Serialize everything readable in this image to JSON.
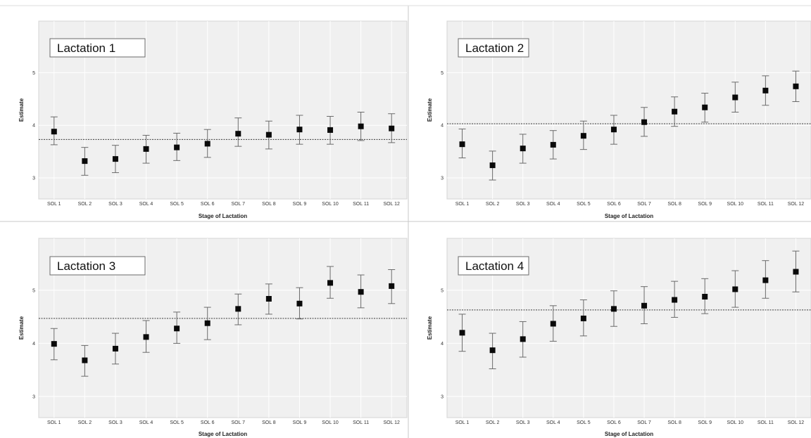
{
  "chart_data": [
    {
      "type": "scatter",
      "title": "Lactation 1",
      "xlabel": "Stage of Lactation",
      "ylabel": "Estimate",
      "categories": [
        "SOL 1",
        "SOL 2",
        "SOL 3",
        "SOL 4",
        "SOL 5",
        "SOL 6",
        "SOL 7",
        "SOL 8",
        "SOL 9",
        "SOL 10",
        "SOL 11",
        "SOL 12"
      ],
      "values": [
        3.88,
        3.32,
        3.36,
        3.55,
        3.58,
        3.65,
        3.84,
        3.82,
        3.92,
        3.91,
        3.98,
        3.94
      ],
      "lower": [
        3.63,
        3.05,
        3.1,
        3.28,
        3.33,
        3.39,
        3.6,
        3.55,
        3.64,
        3.64,
        3.71,
        3.67
      ],
      "upper": [
        4.16,
        3.58,
        3.62,
        3.81,
        3.85,
        3.92,
        4.14,
        4.08,
        4.19,
        4.17,
        4.25,
        4.22
      ],
      "reference_line": 3.73,
      "yticks": [
        3,
        4,
        5
      ],
      "ylim": [
        2.6,
        5.98
      ],
      "grid": true,
      "colors": {
        "marker": "#0a0a0a",
        "errorbar": "#6a6a6a",
        "panel_bg": "#f0f0f0"
      }
    },
    {
      "type": "scatter",
      "title": "Lactation 2",
      "xlabel": "Stage of Lactation",
      "ylabel": "Estimate",
      "categories": [
        "SOL 1",
        "SOL 2",
        "SOL 3",
        "SOL 4",
        "SOL 5",
        "SOL 6",
        "SOL 7",
        "SOL 8",
        "SOL 9",
        "SOL 10",
        "SOL 11",
        "SOL 12"
      ],
      "values": [
        3.64,
        3.24,
        3.56,
        3.63,
        3.8,
        3.92,
        4.06,
        4.26,
        4.34,
        4.53,
        4.66,
        4.74
      ],
      "lower": [
        3.38,
        2.96,
        3.28,
        3.36,
        3.54,
        3.64,
        3.79,
        3.98,
        4.06,
        4.25,
        4.38,
        4.45
      ],
      "upper": [
        3.93,
        3.51,
        3.83,
        3.9,
        4.08,
        4.19,
        4.34,
        4.54,
        4.61,
        4.82,
        4.94,
        5.03
      ],
      "reference_line": 4.03,
      "yticks": [
        3,
        4,
        5
      ],
      "ylim": [
        2.6,
        5.98
      ],
      "grid": true,
      "colors": {
        "marker": "#0a0a0a",
        "errorbar": "#6a6a6a",
        "panel_bg": "#f0f0f0"
      }
    },
    {
      "type": "scatter",
      "title": "Lactation 3",
      "xlabel": "Stage of Lactation",
      "ylabel": "Estimate",
      "categories": [
        "SOL 1",
        "SOL 2",
        "SOL 3",
        "SOL 4",
        "SOL 5",
        "SOL 6",
        "SOL 7",
        "SOL 8",
        "SOL 9",
        "SOL 10",
        "SOL 11",
        "SOL 12"
      ],
      "values": [
        3.99,
        3.68,
        3.9,
        4.12,
        4.28,
        4.38,
        4.65,
        4.84,
        4.75,
        5.14,
        4.97,
        5.08
      ],
      "lower": [
        3.69,
        3.38,
        3.61,
        3.83,
        4.0,
        4.07,
        4.35,
        4.55,
        4.46,
        4.85,
        4.67,
        4.75
      ],
      "upper": [
        4.28,
        3.96,
        4.19,
        4.43,
        4.59,
        4.68,
        4.93,
        5.12,
        5.05,
        5.45,
        5.29,
        5.39
      ],
      "reference_line": 4.47,
      "yticks": [
        3,
        4,
        5
      ],
      "ylim": [
        2.6,
        5.98
      ],
      "grid": true,
      "colors": {
        "marker": "#0a0a0a",
        "errorbar": "#6a6a6a",
        "panel_bg": "#f0f0f0"
      }
    },
    {
      "type": "scatter",
      "title": "Lactation 4",
      "xlabel": "Stage of Lactation",
      "ylabel": "Estimate",
      "categories": [
        "SOL 1",
        "SOL 2",
        "SOL 3",
        "SOL 4",
        "SOL 5",
        "SOL 6",
        "SOL 7",
        "SOL 8",
        "SOL 9",
        "SOL 10",
        "SOL 11",
        "SOL 12"
      ],
      "values": [
        4.2,
        3.87,
        4.08,
        4.37,
        4.47,
        4.65,
        4.71,
        4.82,
        4.88,
        5.02,
        5.19,
        5.35
      ],
      "lower": [
        3.85,
        3.52,
        3.74,
        4.04,
        4.14,
        4.32,
        4.37,
        4.49,
        4.56,
        4.68,
        4.85,
        4.97
      ],
      "upper": [
        4.55,
        4.19,
        4.41,
        4.71,
        4.82,
        4.99,
        5.07,
        5.17,
        5.22,
        5.37,
        5.56,
        5.74
      ],
      "reference_line": 4.63,
      "yticks": [
        3,
        4,
        5
      ],
      "ylim": [
        2.6,
        5.98
      ],
      "grid": true,
      "colors": {
        "marker": "#0a0a0a",
        "errorbar": "#6a6a6a",
        "panel_bg": "#f0f0f0"
      }
    }
  ]
}
